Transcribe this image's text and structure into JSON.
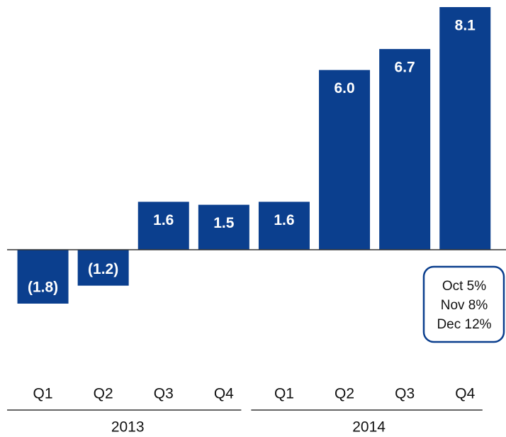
{
  "chart_data": {
    "type": "bar",
    "categories": [
      "Q1",
      "Q2",
      "Q3",
      "Q4",
      "Q1",
      "Q2",
      "Q3",
      "Q4"
    ],
    "groups": [
      "2013",
      "2014"
    ],
    "values": [
      -1.8,
      -1.2,
      1.6,
      1.5,
      1.6,
      6.0,
      6.7,
      8.1
    ],
    "value_labels": [
      "(1.8)",
      "(1.2)",
      "1.6",
      "1.5",
      "1.6",
      "6.0",
      "6.7",
      "8.1"
    ],
    "color": "#0b3f8e",
    "annotation": [
      "Oct 5%",
      "Nov 8%",
      "Dec 12%"
    ]
  }
}
